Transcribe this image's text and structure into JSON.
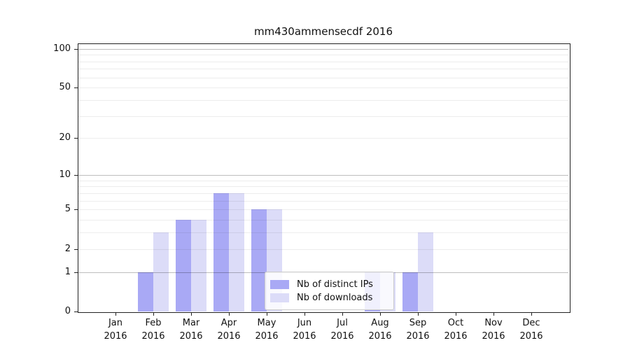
{
  "title": "mm430ammensecdf 2016",
  "legend": {
    "items": [
      {
        "label": "Nb of distinct IPs",
        "color": "#a9a9f5"
      },
      {
        "label": "Nb of downloads",
        "color": "#dcdcf8"
      }
    ]
  },
  "axes": {
    "y_tick_labels": [
      "100",
      "50",
      "20",
      "10",
      "5",
      "2",
      "1",
      "0"
    ],
    "x_months": [
      "Jan",
      "Feb",
      "Mar",
      "Apr",
      "May",
      "Jun",
      "Jul",
      "Aug",
      "Sep",
      "Oct",
      "Nov",
      "Dec"
    ],
    "year": "2016"
  },
  "chart_data": {
    "type": "bar",
    "title": "mm430ammensecdf 2016",
    "categories": [
      "Jan 2016",
      "Feb 2016",
      "Mar 2016",
      "Apr 2016",
      "May 2016",
      "Jun 2016",
      "Jul 2016",
      "Aug 2016",
      "Sep 2016",
      "Oct 2016",
      "Nov 2016",
      "Dec 2016"
    ],
    "series": [
      {
        "name": "Nb of distinct IPs",
        "color": "#a9a9f5",
        "values": [
          0,
          1,
          4,
          7,
          5,
          0,
          0,
          1,
          1,
          0,
          0,
          0
        ]
      },
      {
        "name": "Nb of downloads",
        "color": "#dcdcf8",
        "values": [
          0,
          3,
          4,
          7,
          5,
          0,
          0,
          1,
          3,
          0,
          0,
          0
        ]
      }
    ],
    "yscale": "log1p",
    "yticks": [
      0,
      1,
      2,
      5,
      10,
      20,
      50,
      100
    ],
    "major_gridlines": [
      1,
      10,
      100
    ],
    "minor_gridlines": [
      2,
      3,
      4,
      5,
      6,
      7,
      8,
      9,
      20,
      30,
      40,
      50,
      60,
      70,
      80,
      90
    ],
    "ylim": [
      0,
      110
    ],
    "grid": true,
    "legend_position": "inside lower center-right"
  }
}
